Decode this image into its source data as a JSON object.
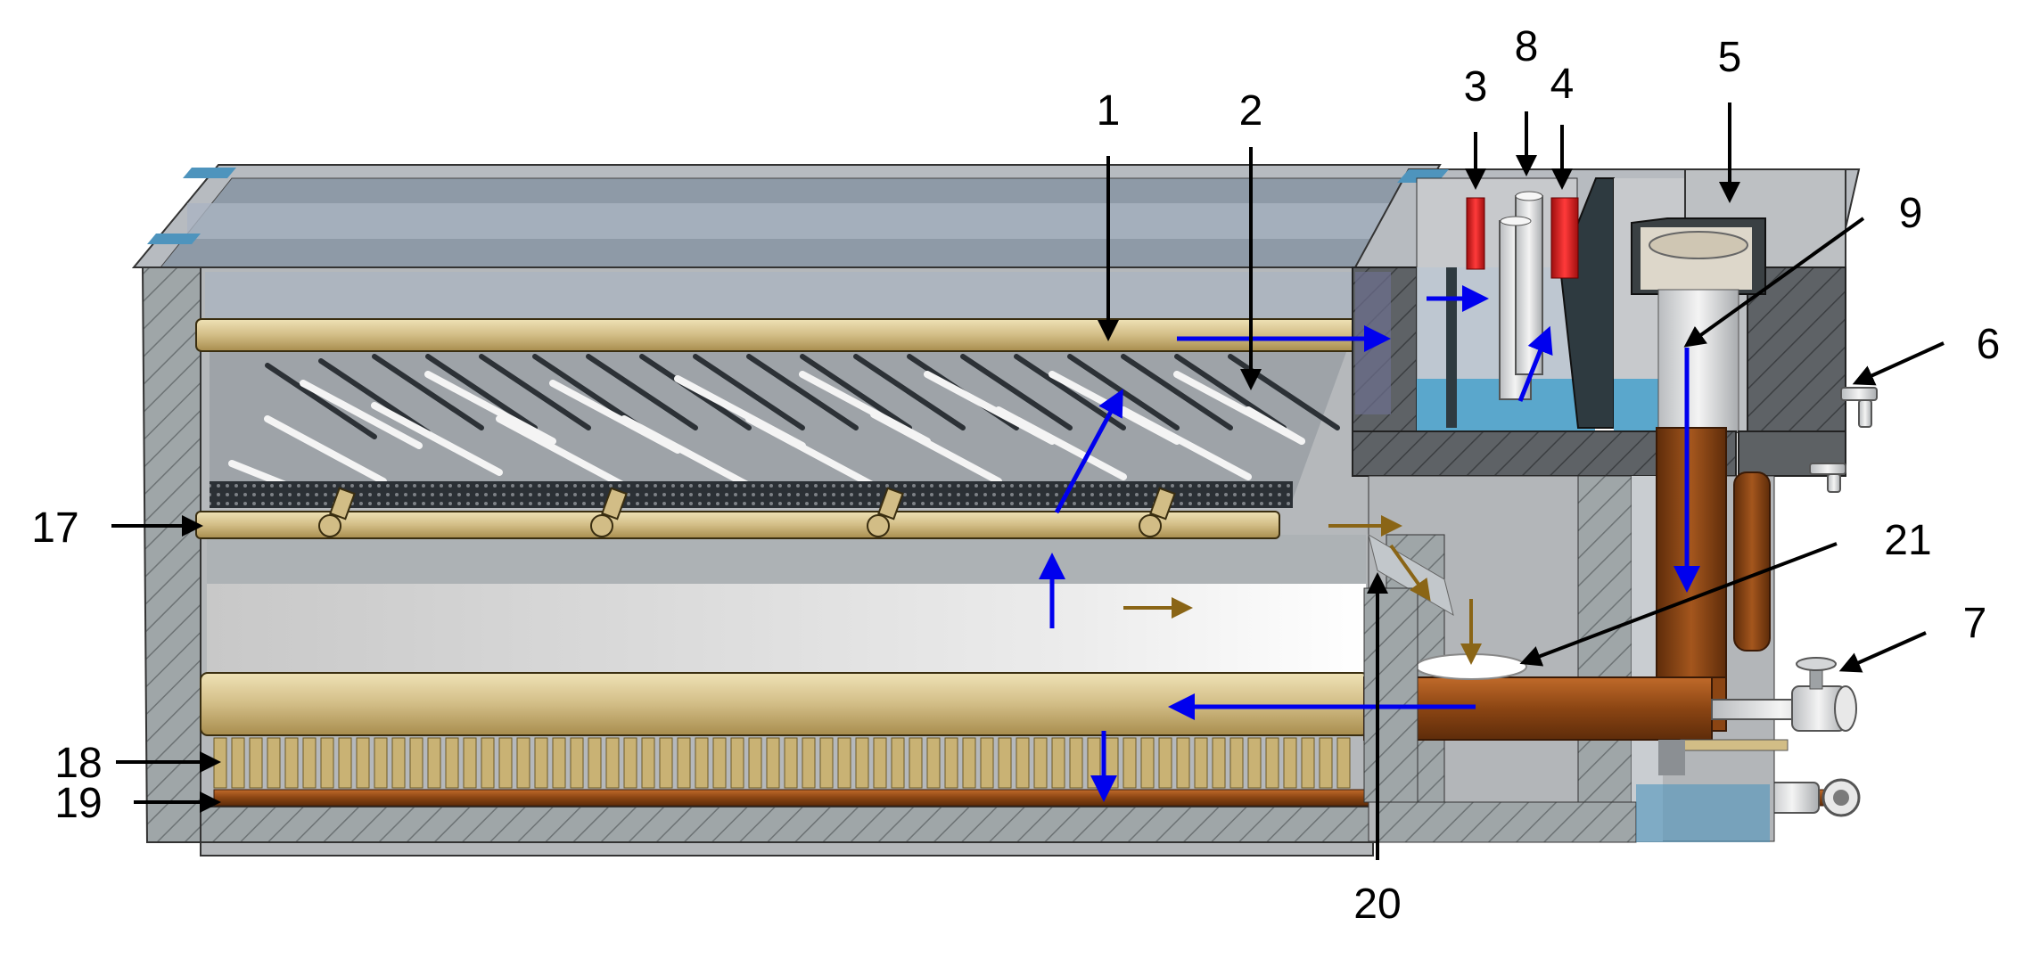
{
  "labels": {
    "l1": "1",
    "l2": "2",
    "l3": "3",
    "l4": "4",
    "l5": "5",
    "l6": "6",
    "l7": "7",
    "l8": "8",
    "l9": "9",
    "l17": "17",
    "l18": "18",
    "l19": "19",
    "l20": "20",
    "l21": "21"
  },
  "colors": {
    "water_flow": "#0000ee",
    "sludge_flow": "#8a6516",
    "brass_pipe": "#d2bd86",
    "copper_pipe": "#8b4513",
    "heater_red": "#dd1c1c",
    "wall_gray": "#a3a8ad",
    "water_blue": "#5aa7cc"
  }
}
